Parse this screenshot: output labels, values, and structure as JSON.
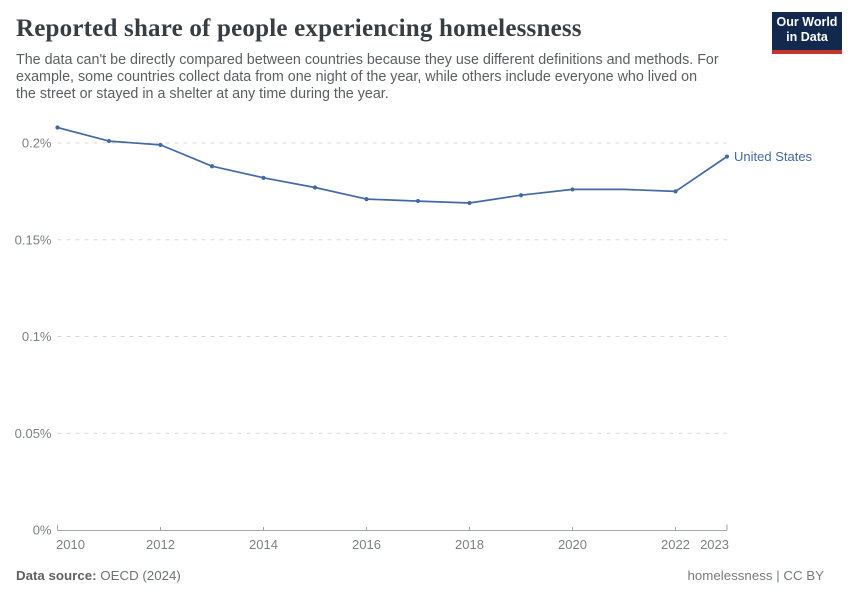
{
  "header": {
    "title": "Reported share of people experiencing homelessness",
    "subtitle_lines": [
      "The data can't be directly compared between countries because they use different definitions and methods. For",
      "example, some countries collect data from one night of the year, while others include everyone who lived on",
      "the street or stayed in a shelter at any time during the year."
    ],
    "logo": {
      "line1": "Our World",
      "line2": "in Data",
      "bg_color": "#12294d",
      "stripe_color": "#c0362f"
    }
  },
  "chart_data": {
    "type": "line",
    "title": "Reported share of people experiencing homelessness",
    "xlabel": "",
    "ylabel": "",
    "unit": "%",
    "grid": "horizontal-dashed",
    "legend_position": "end-of-line",
    "xlim": [
      2010,
      2023
    ],
    "ylim": [
      0,
      0.21
    ],
    "xticks": [
      2010,
      2012,
      2014,
      2016,
      2018,
      2020,
      2022,
      2023
    ],
    "yticks": [
      {
        "v": 0,
        "label": "0%"
      },
      {
        "v": 0.05,
        "label": "0.05%"
      },
      {
        "v": 0.1,
        "label": "0.1%"
      },
      {
        "v": 0.15,
        "label": "0.15%"
      },
      {
        "v": 0.2,
        "label": "0.2%"
      }
    ],
    "series": [
      {
        "name": "United States",
        "color": "#4369a3",
        "points": [
          {
            "year": 2010,
            "value": 0.208,
            "marker": true
          },
          {
            "year": 2011,
            "value": 0.201,
            "marker": true
          },
          {
            "year": 2012,
            "value": 0.199,
            "marker": true
          },
          {
            "year": 2013,
            "value": 0.188,
            "marker": true
          },
          {
            "year": 2014,
            "value": 0.182,
            "marker": true
          },
          {
            "year": 2015,
            "value": 0.177,
            "marker": true
          },
          {
            "year": 2016,
            "value": 0.171,
            "marker": true
          },
          {
            "year": 2017,
            "value": 0.17,
            "marker": true
          },
          {
            "year": 2018,
            "value": 0.169,
            "marker": true
          },
          {
            "year": 2019,
            "value": 0.173,
            "marker": true
          },
          {
            "year": 2020,
            "value": 0.176,
            "marker": true
          },
          {
            "year": 2021,
            "value": 0.176,
            "marker": false
          },
          {
            "year": 2022,
            "value": 0.175,
            "marker": true
          },
          {
            "year": 2023,
            "value": 0.193,
            "marker": true
          }
        ]
      }
    ]
  },
  "footer": {
    "source_label": "Data source:",
    "source_value": "OECD (2024)",
    "note": "homelessness | CC BY"
  }
}
